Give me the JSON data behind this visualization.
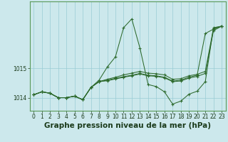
{
  "title": "Graphe pression niveau de la mer (hPa)",
  "bg_color": "#cce8ec",
  "grid_color": "#99ccd4",
  "line_color": "#2d6a2d",
  "x_min": 0,
  "x_max": 23,
  "y_min": 1013.55,
  "y_max": 1017.3,
  "yticks": [
    1014,
    1015
  ],
  "xticks": [
    0,
    1,
    2,
    3,
    4,
    5,
    6,
    7,
    8,
    9,
    10,
    11,
    12,
    13,
    14,
    15,
    16,
    17,
    18,
    19,
    20,
    21,
    22,
    23
  ],
  "s1": [
    1014.1,
    1014.2,
    1014.15,
    1014.0,
    1014.0,
    1014.05,
    1013.93,
    1014.35,
    1014.6,
    1015.05,
    1015.4,
    1016.4,
    1016.7,
    1015.7,
    1014.45,
    1014.38,
    1014.2,
    1013.78,
    1013.88,
    1014.12,
    1014.22,
    1014.55,
    1016.4,
    1016.45
  ],
  "s2": [
    1014.1,
    1014.2,
    1014.15,
    1014.0,
    1014.0,
    1014.05,
    1013.93,
    1014.35,
    1014.55,
    1014.63,
    1014.7,
    1014.78,
    1014.84,
    1014.9,
    1014.84,
    1014.82,
    1014.78,
    1014.63,
    1014.65,
    1014.75,
    1014.8,
    1014.9,
    1016.38,
    1016.45
  ],
  "s3": [
    1014.1,
    1014.2,
    1014.15,
    1014.0,
    1014.0,
    1014.05,
    1013.93,
    1014.35,
    1014.55,
    1014.6,
    1014.66,
    1014.72,
    1014.77,
    1014.83,
    1014.77,
    1014.75,
    1014.7,
    1014.57,
    1014.6,
    1014.7,
    1014.77,
    1016.2,
    1016.35,
    1016.45
  ],
  "s4": [
    1014.1,
    1014.2,
    1014.15,
    1014.0,
    1014.0,
    1014.05,
    1013.93,
    1014.35,
    1014.55,
    1014.58,
    1014.64,
    1014.7,
    1014.75,
    1014.81,
    1014.75,
    1014.73,
    1014.68,
    1014.55,
    1014.57,
    1014.67,
    1014.73,
    1014.83,
    1016.3,
    1016.45
  ],
  "title_fontsize": 7.5,
  "tick_fontsize": 5.5
}
